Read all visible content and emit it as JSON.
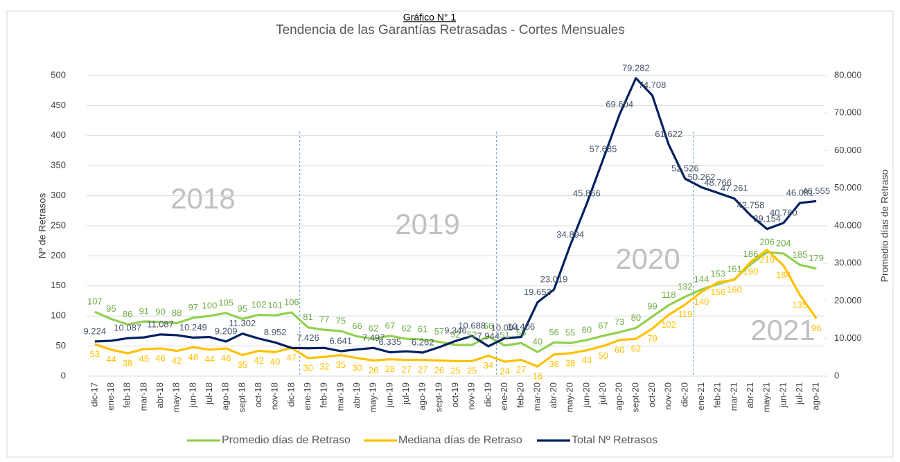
{
  "heading": "Gráfico N° 1",
  "chart_data": {
    "type": "line",
    "title": "Tendencia de las Garantías Retrasadas - Cortes Mensuales",
    "ylabel": "Nº de Retrasos",
    "y2label": "Promedio días de Retraso",
    "annotations": [
      "2018",
      "2019",
      "2020",
      "2021"
    ],
    "categories": [
      "dic-17",
      "ene-18",
      "feb-18",
      "mar-18",
      "abr-18",
      "may-18",
      "jun-18",
      "jul-18",
      "ago-18",
      "sept-18",
      "oct-18",
      "nov-18",
      "dic-18",
      "ene-19",
      "feb-19",
      "mar-19",
      "abr-19",
      "may-19",
      "jun-19",
      "jul-19",
      "ago-19",
      "sept-19",
      "oct-19",
      "nov-19",
      "dic-19",
      "ene-20",
      "feb-20",
      "mar-20",
      "abr-20",
      "may-20",
      "jun-20",
      "jul-20",
      "ago-20",
      "sept-20",
      "oct-20",
      "nov-20",
      "dic-20",
      "ene-21",
      "feb-21",
      "mar-21",
      "abr-21",
      "may-21",
      "jun-21",
      "jul-21",
      "ago-21"
    ],
    "ylim": [
      0,
      500
    ],
    "yticks": [
      0,
      50,
      100,
      150,
      200,
      250,
      300,
      350,
      400,
      450,
      500
    ],
    "y2lim": [
      0,
      80000
    ],
    "y2ticks": [
      0,
      {
        "value": 10000,
        "label": "10.000"
      },
      {
        "value": 20000,
        "label": "20.000"
      },
      {
        "value": 30000,
        "label": "30.000"
      },
      {
        "value": 40000,
        "label": "40.000"
      },
      {
        "value": 50000,
        "label": "50.000"
      },
      {
        "value": 60000,
        "label": "60.000"
      },
      {
        "value": 70000,
        "label": "70.000"
      },
      {
        "value": 80000,
        "label": "80.000"
      }
    ],
    "grid": true,
    "legend": "bottom",
    "series": [
      {
        "name": "Promedio días de Retraso",
        "color": "#92d050",
        "label_color": "#70ad47",
        "values": [
          107,
          95,
          86,
          91,
          90,
          88,
          97,
          100,
          105,
          95,
          102,
          101,
          106,
          81,
          77,
          75,
          66,
          62,
          67,
          62,
          61,
          57,
          52,
          52,
          66,
          51,
          55,
          40,
          56,
          55,
          60,
          67,
          73,
          80,
          99,
          118,
          132,
          144,
          153,
          161,
          186,
          206,
          204,
          185,
          179
        ]
      },
      {
        "name": "Mediana días de Retraso",
        "color": "#ffc000",
        "label_color": "#ffc000",
        "values": [
          53,
          44,
          38,
          45,
          46,
          42,
          48,
          44,
          46,
          35,
          42,
          40,
          47,
          30,
          32,
          35,
          30,
          26,
          28,
          27,
          27,
          26,
          25,
          25,
          34,
          24,
          27,
          16,
          36,
          38,
          43,
          50,
          60,
          62,
          79,
          102,
          119,
          140,
          156,
          160,
          190,
          210,
          184,
          135,
          96
        ]
      },
      {
        "name": "Total Nº Retrasos",
        "color": "#002060",
        "label_color": "#44546a",
        "axis": "y2",
        "values": [
          9224,
          9400,
          10087,
          10300,
          11087,
          10900,
          10249,
          10400,
          9209,
          11302,
          10000,
          8952,
          7500,
          7426,
          7500,
          6641,
          7100,
          7497,
          6335,
          6600,
          6262,
          7700,
          9346,
          10688,
          7944,
          10094,
          10406,
          19653,
          23019,
          34894,
          45866,
          57685,
          69604,
          79282,
          74708,
          61622,
          52526,
          50262,
          48766,
          47261,
          42758,
          39154,
          40760,
          46081,
          46555
        ],
        "value_labels": [
          "9.224",
          null,
          "10.087",
          null,
          "11.087",
          null,
          "10.249",
          null,
          "9.209",
          "11.302",
          null,
          "8.952",
          null,
          "7.426",
          null,
          "6.641",
          null,
          "7.497",
          "6.335",
          null,
          "6.262",
          null,
          "9.346",
          "10.688",
          "7.944",
          "10.094",
          "10.406",
          "19.653",
          "23.019",
          "34.894",
          "45.866",
          "57.685",
          "69.604",
          "79.282",
          "74.708",
          "61.622",
          "52.526",
          "50.262",
          "48.766",
          "47.261",
          "42.758",
          "39.154",
          "40.760",
          "46.081",
          "46.555"
        ]
      }
    ]
  }
}
